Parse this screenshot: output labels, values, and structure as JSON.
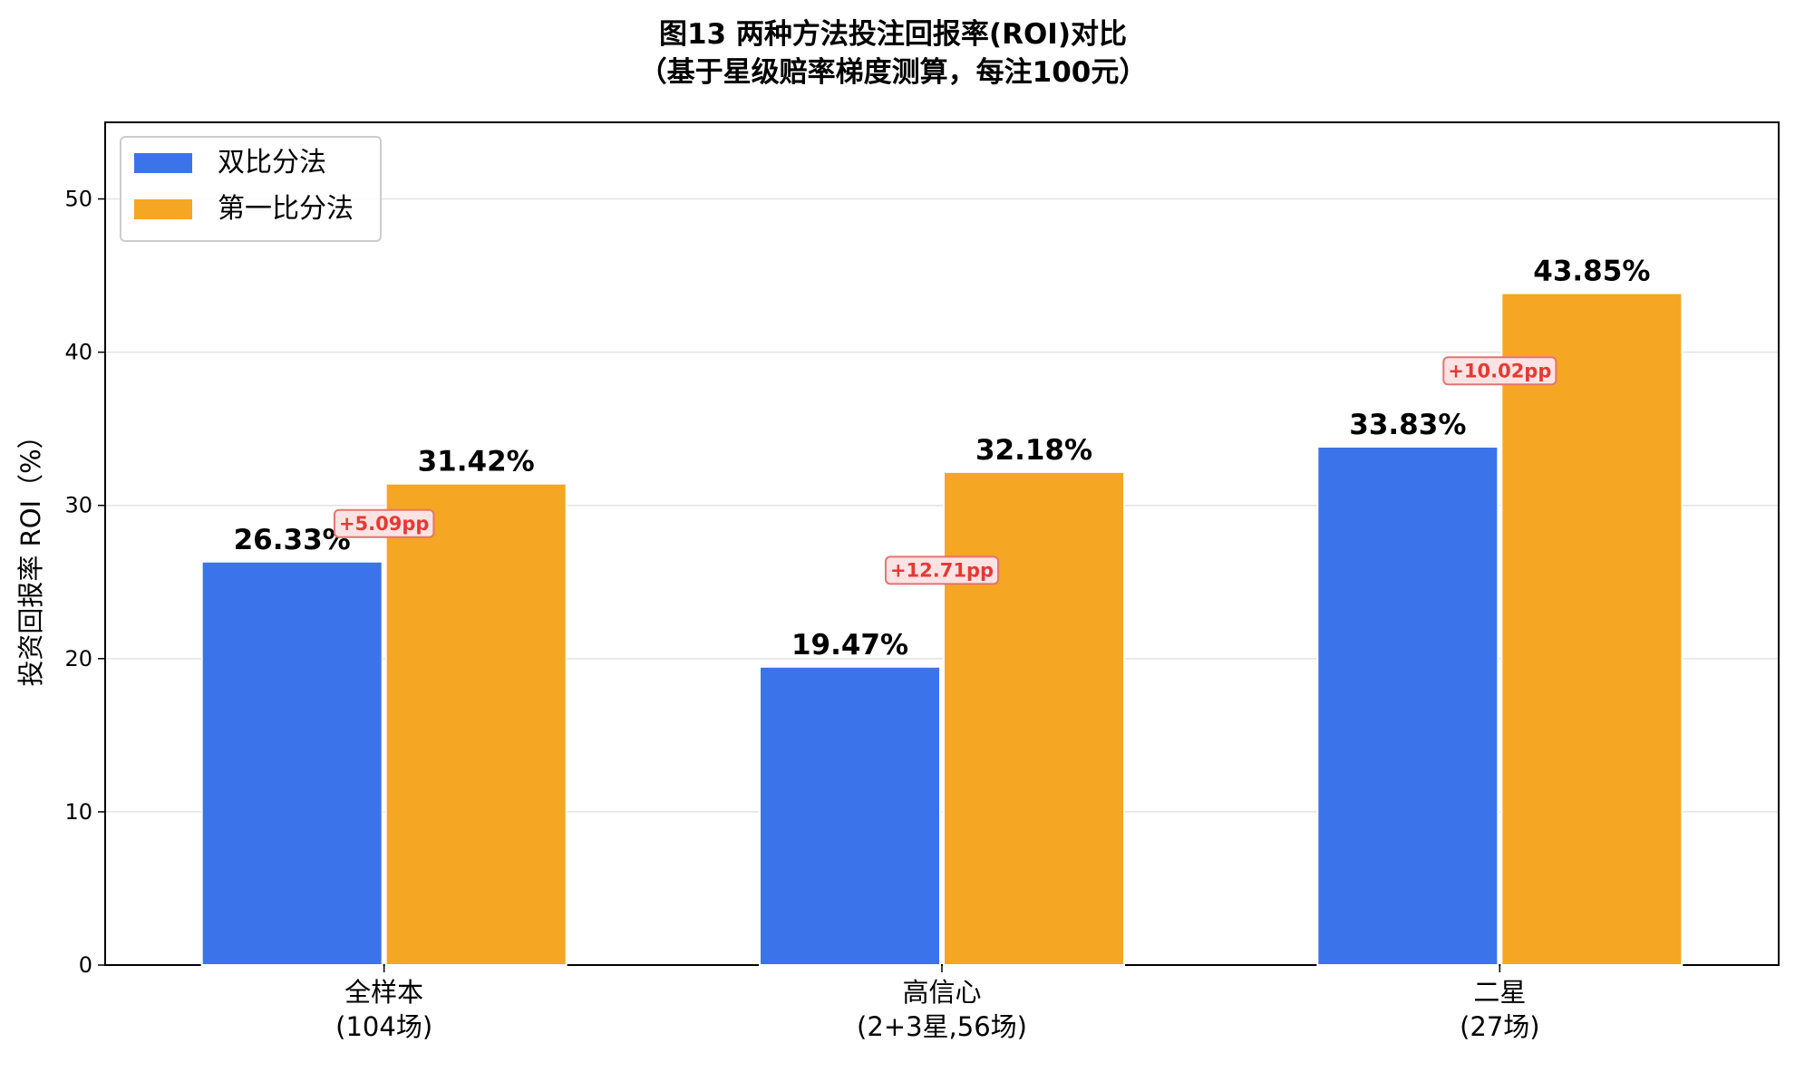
{
  "chart_data": {
    "type": "bar",
    "title": "图13  两种方法投注回报率(ROI)对比",
    "subtitle": "（基于星级赔率梯度测算，每注100元）",
    "ylabel": "投资回报率 ROI（%）",
    "xlabel": "",
    "ylim": [
      0,
      55
    ],
    "yticks": [
      0,
      10,
      20,
      30,
      40,
      50
    ],
    "grid": true,
    "legend_position": "top-left",
    "categories": [
      [
        "全样本",
        "(104场)"
      ],
      [
        "高信心",
        "(2+3星,56场)"
      ],
      [
        "二星",
        "(27场)"
      ]
    ],
    "series": [
      {
        "name": "双比分法",
        "color": "#3b73eb",
        "values": [
          26.33,
          19.47,
          33.83
        ],
        "labels": [
          "26.33%",
          "19.47%",
          "33.83%"
        ]
      },
      {
        "name": "第一比分法",
        "color": "#f5a623",
        "values": [
          31.42,
          32.18,
          43.85
        ],
        "labels": [
          "31.42%",
          "32.18%",
          "43.85%"
        ]
      }
    ],
    "differences": [
      {
        "label": "+5.09pp",
        "value": 5.09
      },
      {
        "label": "+12.71pp",
        "value": 12.71
      },
      {
        "label": "+10.02pp",
        "value": 10.02
      }
    ],
    "annotation_colors": {
      "text": "#e53935",
      "box_fill": "#fde3e3",
      "box_stroke": "#e57373"
    }
  }
}
